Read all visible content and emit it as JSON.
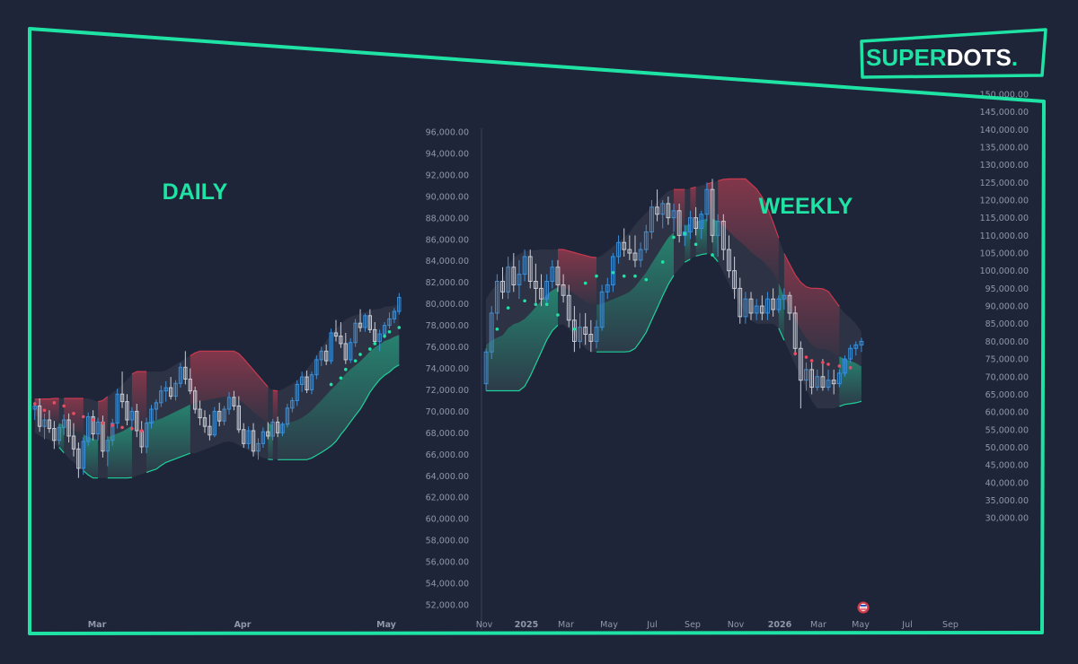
{
  "brand": {
    "logo_part1": "SUPER",
    "logo_part2": "DOTS",
    "logo_dot": ".",
    "accent": "#1fe3a4"
  },
  "chart_data": [
    {
      "type": "candlestick",
      "title": "DAILY",
      "x_ticks": [
        "Mar",
        "Apr",
        "May"
      ],
      "y_ticks": [
        "96,000.00",
        "94,000.00",
        "92,000.00",
        "90,000.00",
        "88,000.00",
        "86,000.00",
        "84,000.00",
        "82,000.00",
        "80,000.00",
        "78,000.00",
        "76,000.00",
        "74,000.00",
        "72,000.00",
        "70,000.00",
        "68,000.00",
        "66,000.00",
        "64,000.00",
        "62,000.00",
        "60,000.00",
        "58,000.00",
        "56,000.00",
        "54,000.00",
        "52,000.00"
      ],
      "ylim": [
        51000,
        97000
      ],
      "colors": {
        "up": "#3c8fd8",
        "down": "#c9ccd4",
        "bear_band": "#c9394f",
        "bull_band": "#1fd19a",
        "range_box": "#8a8f9e"
      },
      "candles": [
        [
          70200,
          70900,
          69200,
          70500
        ],
        [
          70500,
          71200,
          68100,
          68600
        ],
        [
          68600,
          69800,
          67400,
          69200
        ],
        [
          69200,
          70100,
          68000,
          68400
        ],
        [
          68400,
          69100,
          66500,
          67300
        ],
        [
          67300,
          68800,
          66900,
          68500
        ],
        [
          68500,
          69700,
          67800,
          69200
        ],
        [
          69200,
          69800,
          67100,
          67700
        ],
        [
          67700,
          68900,
          65800,
          66500
        ],
        [
          66500,
          67100,
          63800,
          64700
        ],
        [
          64700,
          67600,
          64100,
          67200
        ],
        [
          67200,
          69900,
          66800,
          69500
        ],
        [
          69500,
          70100,
          67300,
          67900
        ],
        [
          67900,
          69400,
          67300,
          69000
        ],
        [
          69000,
          69600,
          65700,
          66300
        ],
        [
          66300,
          67700,
          64900,
          67300
        ],
        [
          67300,
          69300,
          66800,
          68900
        ],
        [
          68900,
          72100,
          68400,
          71600
        ],
        [
          71600,
          73700,
          70300,
          70900
        ],
        [
          70900,
          71600,
          68700,
          69200
        ],
        [
          69200,
          70400,
          68200,
          70000
        ],
        [
          70000,
          70700,
          67600,
          68200
        ],
        [
          68200,
          69100,
          66100,
          66700
        ],
        [
          66700,
          69400,
          66100,
          68900
        ],
        [
          68900,
          70600,
          68400,
          70200
        ],
        [
          70200,
          71100,
          69200,
          70800
        ],
        [
          70800,
          72400,
          70400,
          71900
        ],
        [
          71900,
          72800,
          70900,
          72200
        ],
        [
          72200,
          73200,
          71100,
          71400
        ],
        [
          71400,
          72900,
          71000,
          72600
        ],
        [
          72600,
          74500,
          72200,
          74100
        ],
        [
          74100,
          75600,
          72500,
          73000
        ],
        [
          73000,
          74000,
          71600,
          71900
        ],
        [
          71900,
          72300,
          69800,
          70200
        ],
        [
          70200,
          71000,
          68700,
          69400
        ],
        [
          69400,
          70100,
          68000,
          68600
        ],
        [
          68600,
          69700,
          67300,
          67800
        ],
        [
          67800,
          70400,
          67600,
          70000
        ],
        [
          70000,
          70800,
          68600,
          69100
        ],
        [
          69100,
          70500,
          68700,
          70200
        ],
        [
          70200,
          71800,
          69700,
          71300
        ],
        [
          71300,
          71900,
          70100,
          70500
        ],
        [
          70500,
          71400,
          68000,
          68300
        ],
        [
          68300,
          68900,
          66600,
          67000
        ],
        [
          67000,
          68600,
          66500,
          68200
        ],
        [
          68200,
          68900,
          65800,
          66300
        ],
        [
          66300,
          67500,
          65500,
          67000
        ],
        [
          67000,
          68500,
          66600,
          68100
        ],
        [
          68100,
          69000,
          67400,
          67700
        ],
        [
          67700,
          69300,
          67300,
          69000
        ],
        [
          69000,
          69500,
          67600,
          68000
        ],
        [
          68000,
          69000,
          67700,
          68800
        ],
        [
          68800,
          70700,
          68500,
          70300
        ],
        [
          70300,
          71300,
          69900,
          71000
        ],
        [
          71000,
          72900,
          70500,
          72500
        ],
        [
          72500,
          73700,
          71800,
          73200
        ],
        [
          73200,
          73800,
          71700,
          72000
        ],
        [
          72000,
          73700,
          71600,
          73400
        ],
        [
          73400,
          75200,
          73000,
          74800
        ],
        [
          74800,
          76000,
          74200,
          75600
        ],
        [
          75600,
          76200,
          74300,
          74700
        ],
        [
          74700,
          77700,
          74400,
          77300
        ],
        [
          77300,
          78500,
          76500,
          77000
        ],
        [
          77000,
          78300,
          75900,
          76300
        ],
        [
          76300,
          77300,
          74400,
          74800
        ],
        [
          74800,
          76800,
          74500,
          76400
        ],
        [
          76400,
          78600,
          76000,
          78200
        ],
        [
          78200,
          79500,
          77400,
          77800
        ],
        [
          77800,
          79100,
          77400,
          78900
        ],
        [
          78900,
          79500,
          77300,
          77600
        ],
        [
          77600,
          78300,
          76200,
          76500
        ],
        [
          76500,
          77600,
          75600,
          77200
        ],
        [
          77200,
          78300,
          76800,
          78000
        ],
        [
          78000,
          79200,
          77700,
          78600
        ],
        [
          78600,
          79600,
          78200,
          79300
        ],
        [
          79300,
          81000,
          79000,
          80600
        ]
      ],
      "bear_dots": [
        70200,
        69600,
        70300,
        70000,
        69300,
        69000,
        68700,
        68400,
        68200,
        68000,
        67900,
        67700
      ],
      "bull_dots": [
        73000,
        73600,
        74400,
        75200,
        75800,
        76300,
        76800,
        77500,
        77900,
        78300
      ]
    },
    {
      "type": "candlestick",
      "title": "WEEKLY",
      "x_ticks": [
        "Nov",
        "2025",
        "Mar",
        "May",
        "Jul",
        "Sep",
        "Nov",
        "2026",
        "Mar",
        "May",
        "Jul",
        "Sep"
      ],
      "y_ticks": [
        "150,000.00",
        "145,000.00",
        "140,000.00",
        "135,000.00",
        "130,000.00",
        "125,000.00",
        "120,000.00",
        "115,000.00",
        "110,000.00",
        "105,000.00",
        "100,000.00",
        "95,000.00",
        "90,000.00",
        "85,000.00",
        "80,000.00",
        "75,000.00",
        "70,000.00",
        "65,000.00",
        "60,000.00",
        "55,000.00",
        "50,000.00",
        "45,000.00",
        "40,000.00",
        "35,000.00",
        "30,000.00"
      ],
      "ylim": [
        27000,
        151000
      ],
      "colors": {
        "up": "#3c8fd8",
        "down": "#c9ccd4",
        "bear_band": "#c9394f",
        "bull_band": "#1fd19a",
        "range_box": "#8a8f9e"
      },
      "candles": [
        [
          68000,
          78000,
          66000,
          77000
        ],
        [
          77000,
          90000,
          75000,
          88000
        ],
        [
          88000,
          99000,
          86000,
          97000
        ],
        [
          97000,
          101000,
          92000,
          94000
        ],
        [
          94000,
          104000,
          92000,
          101000
        ],
        [
          101000,
          105000,
          94000,
          96000
        ],
        [
          96000,
          103000,
          92000,
          99000
        ],
        [
          99000,
          106000,
          97000,
          104000
        ],
        [
          104000,
          106000,
          95000,
          97000
        ],
        [
          97000,
          102000,
          91000,
          95000
        ],
        [
          95000,
          99000,
          90000,
          92000
        ],
        [
          92000,
          99000,
          91000,
          97000
        ],
        [
          97000,
          103000,
          95000,
          101000
        ],
        [
          101000,
          103000,
          94000,
          96000
        ],
        [
          96000,
          99000,
          91000,
          93000
        ],
        [
          93000,
          96000,
          84000,
          86000
        ],
        [
          86000,
          90000,
          77000,
          80000
        ],
        [
          80000,
          88000,
          78000,
          84000
        ],
        [
          84000,
          88000,
          79000,
          82000
        ],
        [
          82000,
          86000,
          77000,
          80000
        ],
        [
          80000,
          86000,
          78000,
          84000
        ],
        [
          84000,
          96000,
          83000,
          94000
        ],
        [
          94000,
          98000,
          92000,
          96000
        ],
        [
          96000,
          105000,
          94000,
          104000
        ],
        [
          104000,
          110000,
          102000,
          108000
        ],
        [
          108000,
          112000,
          104000,
          106000
        ],
        [
          106000,
          110000,
          103000,
          105000
        ],
        [
          105000,
          110000,
          101000,
          103000
        ],
        [
          103000,
          108000,
          101000,
          106000
        ],
        [
          106000,
          113000,
          105000,
          111000
        ],
        [
          111000,
          120000,
          109000,
          118000
        ],
        [
          118000,
          123000,
          114000,
          116000
        ],
        [
          116000,
          120000,
          112000,
          119000
        ],
        [
          119000,
          121000,
          113000,
          115000
        ],
        [
          115000,
          119000,
          111000,
          117000
        ],
        [
          117000,
          119000,
          108000,
          110000
        ],
        [
          110000,
          113000,
          107000,
          111000
        ],
        [
          111000,
          117000,
          109000,
          115000
        ],
        [
          115000,
          118000,
          110000,
          112000
        ],
        [
          112000,
          117000,
          109000,
          116000
        ],
        [
          116000,
          125000,
          114000,
          123000
        ],
        [
          123000,
          126000,
          108000,
          110000
        ],
        [
          110000,
          116000,
          104000,
          114000
        ],
        [
          114000,
          116000,
          103000,
          106000
        ],
        [
          106000,
          110000,
          98000,
          100000
        ],
        [
          100000,
          104000,
          92000,
          95000
        ],
        [
          95000,
          98000,
          85000,
          87000
        ],
        [
          87000,
          94000,
          85000,
          92000
        ],
        [
          92000,
          94000,
          86000,
          88000
        ],
        [
          88000,
          92000,
          86000,
          90000
        ],
        [
          90000,
          93000,
          86000,
          88000
        ],
        [
          88000,
          94000,
          86000,
          92000
        ],
        [
          92000,
          95000,
          87000,
          89000
        ],
        [
          89000,
          93000,
          88000,
          92000
        ],
        [
          92000,
          95000,
          89000,
          93000
        ],
        [
          93000,
          94000,
          86000,
          88000
        ],
        [
          88000,
          90000,
          76000,
          78000
        ],
        [
          78000,
          80000,
          61000,
          69000
        ],
        [
          69000,
          74000,
          66000,
          72000
        ],
        [
          72000,
          74000,
          65000,
          67000
        ],
        [
          67000,
          72000,
          66000,
          70000
        ],
        [
          70000,
          75000,
          66000,
          67000
        ],
        [
          67000,
          72000,
          66000,
          69000
        ],
        [
          69000,
          72000,
          65000,
          68000
        ],
        [
          68000,
          72000,
          67000,
          71000
        ],
        [
          71000,
          76000,
          70000,
          75000
        ],
        [
          75000,
          79000,
          74000,
          78000
        ],
        [
          78000,
          80000,
          76000,
          79000
        ],
        [
          79000,
          81000,
          77000,
          80000
        ]
      ],
      "bear_dots": [
        75000,
        74000,
        73000,
        72500,
        72000,
        71500,
        71000
      ],
      "bull_dots": [
        85000,
        91000,
        93000,
        92000,
        92000,
        89000,
        85000,
        98000,
        100000,
        101000,
        100000,
        100000,
        99000,
        104000,
        111000,
        112000,
        109000,
        106000
      ]
    }
  ]
}
